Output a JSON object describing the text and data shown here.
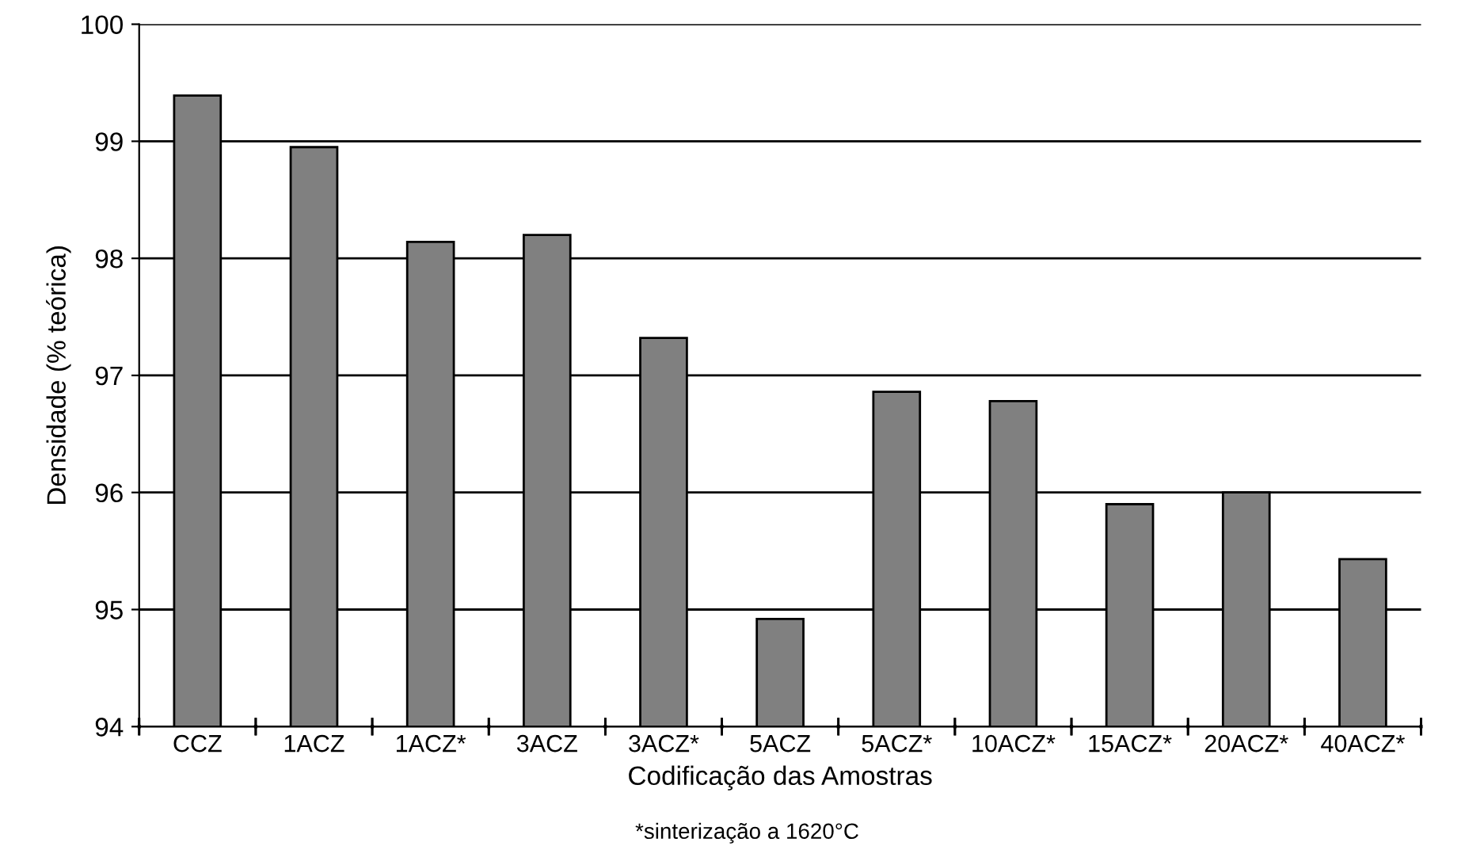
{
  "chart_data": {
    "type": "bar",
    "categories": [
      "CCZ",
      "1ACZ",
      "1ACZ*",
      "3ACZ",
      "3ACZ*",
      "5ACZ",
      "5ACZ*",
      "10ACZ*",
      "15ACZ*",
      "20ACZ*",
      "40ACZ*"
    ],
    "values": [
      99.39,
      98.95,
      98.14,
      98.2,
      97.32,
      94.92,
      96.86,
      96.78,
      95.9,
      96.0,
      95.43
    ],
    "color": "#808080",
    "xlabel": "Codificação das Amostras",
    "ylabel": "Densidade (% teórica)",
    "annotations": [
      "*sinterização a 1620°C"
    ],
    "ylim": [
      94,
      100
    ],
    "yticks": [
      94,
      95,
      96,
      97,
      98,
      99,
      100
    ],
    "grid": "y",
    "legend": false
  }
}
